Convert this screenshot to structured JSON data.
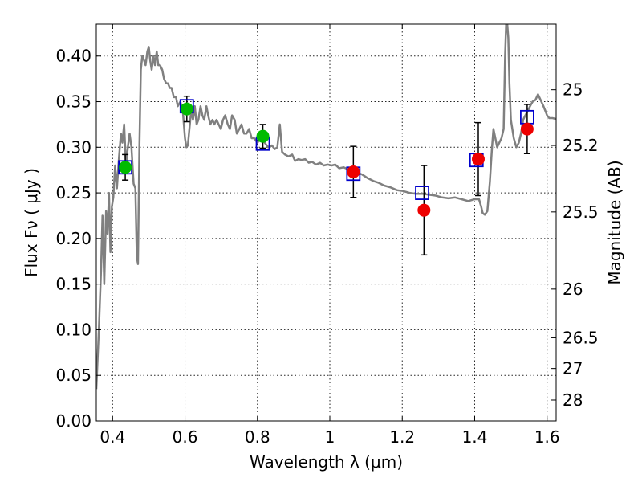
{
  "chart_data": {
    "type": "scatter",
    "title": "",
    "xlabel": "Wavelength  λ (μm)",
    "ylabel": "Flux  Fν  ( μJy )",
    "ylabel_right": "Magnitude (AB)",
    "xlim": [
      0.355,
      1.625
    ],
    "ylim": [
      0.0,
      0.435
    ],
    "grid": true,
    "legend": "none",
    "x_ticks": [
      0.4,
      0.6,
      0.8,
      1.0,
      1.2,
      1.4,
      1.6
    ],
    "x_tick_labels": [
      "0.4",
      "0.6",
      "0.8",
      "1",
      "1.2",
      "1.4",
      "1.6"
    ],
    "y_ticks": [
      0.0,
      0.05,
      0.1,
      0.15,
      0.2,
      0.25,
      0.3,
      0.35,
      0.4
    ],
    "y_tick_labels": [
      "0.00",
      "0.05",
      "0.10",
      "0.15",
      "0.20",
      "0.25",
      "0.30",
      "0.35",
      "0.40"
    ],
    "right_ticks": [
      {
        "mag": 25,
        "label": "25"
      },
      {
        "mag": 25.2,
        "label": "25.2"
      },
      {
        "mag": 25.5,
        "label": "25.5"
      },
      {
        "mag": 26,
        "label": "26"
      },
      {
        "mag": 26.5,
        "label": "26.5"
      },
      {
        "mag": 27,
        "label": "27"
      },
      {
        "mag": 28,
        "label": "28"
      }
    ],
    "series": [
      {
        "kind": "line",
        "color": "#808080",
        "points": [
          [
            0.355,
            0.035
          ],
          [
            0.362,
            0.1
          ],
          [
            0.368,
            0.165
          ],
          [
            0.372,
            0.225
          ],
          [
            0.377,
            0.15
          ],
          [
            0.382,
            0.23
          ],
          [
            0.386,
            0.205
          ],
          [
            0.39,
            0.25
          ],
          [
            0.394,
            0.185
          ],
          [
            0.398,
            0.235
          ],
          [
            0.402,
            0.245
          ],
          [
            0.407,
            0.28
          ],
          [
            0.412,
            0.255
          ],
          [
            0.418,
            0.29
          ],
          [
            0.423,
            0.315
          ],
          [
            0.427,
            0.305
          ],
          [
            0.432,
            0.325
          ],
          [
            0.437,
            0.28
          ],
          [
            0.442,
            0.3
          ],
          [
            0.447,
            0.315
          ],
          [
            0.452,
            0.3
          ],
          [
            0.458,
            0.26
          ],
          [
            0.463,
            0.255
          ],
          [
            0.467,
            0.18
          ],
          [
            0.47,
            0.172
          ],
          [
            0.474,
            0.3
          ],
          [
            0.478,
            0.385
          ],
          [
            0.482,
            0.4
          ],
          [
            0.487,
            0.395
          ],
          [
            0.491,
            0.39
          ],
          [
            0.496,
            0.405
          ],
          [
            0.5,
            0.41
          ],
          [
            0.504,
            0.395
          ],
          [
            0.508,
            0.385
          ],
          [
            0.513,
            0.4
          ],
          [
            0.517,
            0.39
          ],
          [
            0.522,
            0.405
          ],
          [
            0.526,
            0.39
          ],
          [
            0.531,
            0.39
          ],
          [
            0.537,
            0.385
          ],
          [
            0.542,
            0.375
          ],
          [
            0.548,
            0.37
          ],
          [
            0.553,
            0.37
          ],
          [
            0.558,
            0.365
          ],
          [
            0.563,
            0.365
          ],
          [
            0.569,
            0.355
          ],
          [
            0.575,
            0.355
          ],
          [
            0.58,
            0.345
          ],
          [
            0.587,
            0.35
          ],
          [
            0.594,
            0.34
          ],
          [
            0.6,
            0.31
          ],
          [
            0.604,
            0.3
          ],
          [
            0.608,
            0.302
          ],
          [
            0.612,
            0.32
          ],
          [
            0.617,
            0.34
          ],
          [
            0.622,
            0.33
          ],
          [
            0.627,
            0.345
          ],
          [
            0.632,
            0.325
          ],
          [
            0.637,
            0.33
          ],
          [
            0.643,
            0.345
          ],
          [
            0.648,
            0.335
          ],
          [
            0.653,
            0.33
          ],
          [
            0.659,
            0.345
          ],
          [
            0.664,
            0.335
          ],
          [
            0.67,
            0.325
          ],
          [
            0.676,
            0.33
          ],
          [
            0.681,
            0.325
          ],
          [
            0.687,
            0.33
          ],
          [
            0.693,
            0.325
          ],
          [
            0.699,
            0.32
          ],
          [
            0.705,
            0.33
          ],
          [
            0.711,
            0.335
          ],
          [
            0.718,
            0.325
          ],
          [
            0.724,
            0.32
          ],
          [
            0.73,
            0.335
          ],
          [
            0.737,
            0.33
          ],
          [
            0.743,
            0.315
          ],
          [
            0.75,
            0.32
          ],
          [
            0.756,
            0.325
          ],
          [
            0.763,
            0.315
          ],
          [
            0.77,
            0.315
          ],
          [
            0.777,
            0.32
          ],
          [
            0.784,
            0.31
          ],
          [
            0.791,
            0.31
          ],
          [
            0.8,
            0.305
          ],
          [
            0.81,
            0.31
          ],
          [
            0.82,
            0.305
          ],
          [
            0.83,
            0.3
          ],
          [
            0.84,
            0.302
          ],
          [
            0.848,
            0.298
          ],
          [
            0.855,
            0.3
          ],
          [
            0.862,
            0.325
          ],
          [
            0.868,
            0.295
          ],
          [
            0.876,
            0.292
          ],
          [
            0.886,
            0.29
          ],
          [
            0.896,
            0.292
          ],
          [
            0.904,
            0.285
          ],
          [
            0.913,
            0.287
          ],
          [
            0.922,
            0.286
          ],
          [
            0.932,
            0.287
          ],
          [
            0.942,
            0.283
          ],
          [
            0.951,
            0.284
          ],
          [
            0.962,
            0.281
          ],
          [
            0.973,
            0.283
          ],
          [
            0.983,
            0.28
          ],
          [
            0.994,
            0.281
          ],
          [
            1.005,
            0.28
          ],
          [
            1.015,
            0.281
          ],
          [
            1.026,
            0.277
          ],
          [
            1.038,
            0.278
          ],
          [
            1.05,
            0.276
          ],
          [
            1.063,
            0.275
          ],
          [
            1.077,
            0.272
          ],
          [
            1.09,
            0.27
          ],
          [
            1.105,
            0.266
          ],
          [
            1.12,
            0.263
          ],
          [
            1.135,
            0.261
          ],
          [
            1.15,
            0.258
          ],
          [
            1.168,
            0.256
          ],
          [
            1.185,
            0.253
          ],
          [
            1.202,
            0.252
          ],
          [
            1.22,
            0.25
          ],
          [
            1.238,
            0.249
          ],
          [
            1.256,
            0.249
          ],
          [
            1.274,
            0.248
          ],
          [
            1.292,
            0.247
          ],
          [
            1.31,
            0.245
          ],
          [
            1.328,
            0.244
          ],
          [
            1.346,
            0.245
          ],
          [
            1.364,
            0.243
          ],
          [
            1.382,
            0.241
          ],
          [
            1.4,
            0.243
          ],
          [
            1.412,
            0.243
          ],
          [
            1.418,
            0.235
          ],
          [
            1.422,
            0.228
          ],
          [
            1.428,
            0.226
          ],
          [
            1.435,
            0.23
          ],
          [
            1.442,
            0.262
          ],
          [
            1.448,
            0.3
          ],
          [
            1.452,
            0.32
          ],
          [
            1.456,
            0.312
          ],
          [
            1.462,
            0.3
          ],
          [
            1.468,
            0.305
          ],
          [
            1.474,
            0.31
          ],
          [
            1.48,
            0.32
          ],
          [
            1.484,
            0.4
          ],
          [
            1.487,
            0.435
          ],
          [
            1.49,
            0.435
          ],
          [
            1.493,
            0.42
          ],
          [
            1.496,
            0.37
          ],
          [
            1.5,
            0.33
          ],
          [
            1.508,
            0.31
          ],
          [
            1.515,
            0.3
          ],
          [
            1.522,
            0.305
          ],
          [
            1.528,
            0.315
          ],
          [
            1.534,
            0.33
          ],
          [
            1.54,
            0.335
          ],
          [
            1.547,
            0.34
          ],
          [
            1.553,
            0.345
          ],
          [
            1.56,
            0.35
          ],
          [
            1.568,
            0.352
          ],
          [
            1.575,
            0.358
          ],
          [
            1.582,
            0.352
          ],
          [
            1.59,
            0.345
          ],
          [
            1.595,
            0.34
          ],
          [
            1.6,
            0.335
          ],
          [
            1.606,
            0.332
          ],
          [
            1.615,
            0.332
          ],
          [
            1.625,
            0.331
          ]
        ]
      },
      {
        "kind": "square",
        "color": "#0000cc",
        "points": [
          [
            0.435,
            0.278
          ],
          [
            0.605,
            0.345
          ],
          [
            0.815,
            0.304
          ],
          [
            1.065,
            0.271
          ],
          [
            1.255,
            0.25
          ],
          [
            1.405,
            0.286
          ],
          [
            1.545,
            0.333
          ]
        ]
      },
      {
        "kind": "circle",
        "color": "#00bb00",
        "points": [
          {
            "x": 0.435,
            "y": 0.278,
            "err": 0.014
          },
          {
            "x": 0.605,
            "y": 0.342,
            "err": 0.014
          },
          {
            "x": 0.815,
            "y": 0.312,
            "err": 0.013
          }
        ]
      },
      {
        "kind": "circle",
        "color": "#ee0000",
        "points": [
          {
            "x": 1.065,
            "y": 0.273,
            "err": 0.028
          },
          {
            "x": 1.26,
            "y": 0.231,
            "err": 0.049
          },
          {
            "x": 1.41,
            "y": 0.287,
            "err": 0.04
          },
          {
            "x": 1.545,
            "y": 0.32,
            "err": 0.027
          }
        ]
      }
    ]
  }
}
